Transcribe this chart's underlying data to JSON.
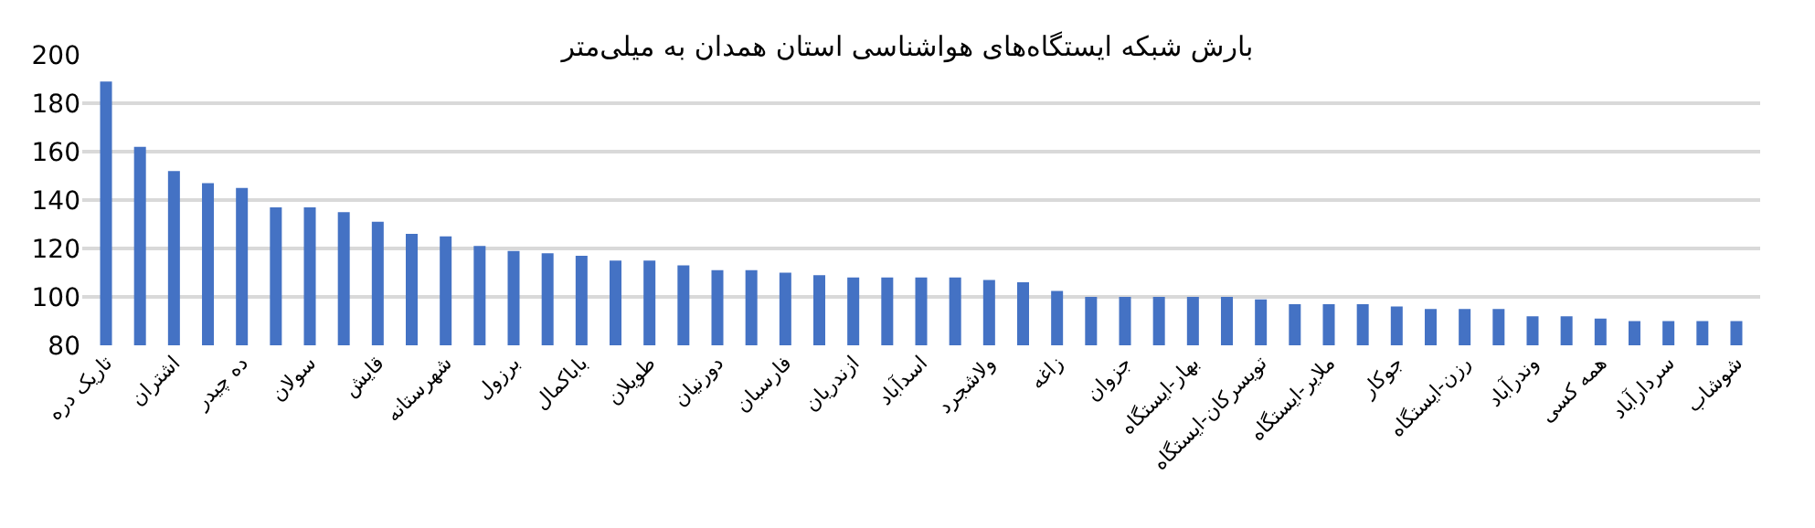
{
  "chart_data": {
    "type": "bar",
    "title": "بارش شبکه ایستگاه‌های هواشناسی استان همدان به میلی‌متر",
    "categories": [
      "تاریک دره",
      null,
      "اشتران",
      null,
      "ده چیدر",
      null,
      "سولان",
      null,
      "قایش",
      null,
      "شهرستانه",
      null,
      "برزول",
      null,
      "باباکمال",
      null,
      "طویلان",
      null,
      "دورنیان",
      null,
      "فارسبان",
      null,
      "ازندریان",
      null,
      "اسدآباد",
      null,
      "ولاشجرد",
      null,
      "زاغه",
      null,
      "جزوان",
      null,
      "بهار-ایستگاه",
      null,
      "تویسرکان-ایستگاه",
      null,
      "ملایر-ایستگاه",
      null,
      "جوکار",
      null,
      "رزن-ایستگاه",
      null,
      "وندرآباد",
      null,
      "همه کسی",
      null,
      "سردارآباد",
      null,
      "شوشاب"
    ],
    "values": [
      189,
      162,
      152,
      147,
      145,
      137,
      137,
      135,
      131,
      126,
      125,
      121,
      119,
      118,
      117,
      115,
      115,
      113,
      111,
      111,
      110,
      109,
      108,
      108,
      108,
      108,
      107,
      106,
      102.5,
      100,
      100,
      100,
      100,
      100,
      99,
      97,
      97,
      97,
      96,
      95,
      95,
      95,
      92,
      92,
      91,
      90,
      90,
      90,
      90
    ],
    "color": "#4472c4",
    "ylim": [
      80,
      200
    ],
    "yticks": [
      80,
      100,
      120,
      140,
      160,
      180,
      200
    ],
    "grid": "y",
    "legend": false
  }
}
